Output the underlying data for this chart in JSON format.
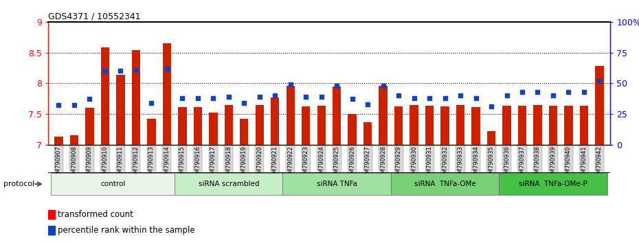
{
  "title": "GDS4371 / 10552341",
  "samples": [
    "GSM790907",
    "GSM790908",
    "GSM790909",
    "GSM790910",
    "GSM790911",
    "GSM790912",
    "GSM790913",
    "GSM790914",
    "GSM790915",
    "GSM790916",
    "GSM790917",
    "GSM790918",
    "GSM790919",
    "GSM790920",
    "GSM790921",
    "GSM790922",
    "GSM790923",
    "GSM790924",
    "GSM790925",
    "GSM790926",
    "GSM790927",
    "GSM790928",
    "GSM790929",
    "GSM790930",
    "GSM790931",
    "GSM790932",
    "GSM790933",
    "GSM790934",
    "GSM790935",
    "GSM790936",
    "GSM790937",
    "GSM790938",
    "GSM790939",
    "GSM790940",
    "GSM790941",
    "GSM790942"
  ],
  "bar_values": [
    7.13,
    7.15,
    7.6,
    8.58,
    8.14,
    8.54,
    7.42,
    8.65,
    7.61,
    7.61,
    7.52,
    7.64,
    7.42,
    7.64,
    7.77,
    7.96,
    7.62,
    7.63,
    7.95,
    7.5,
    7.36,
    7.96,
    7.62,
    7.64,
    7.63,
    7.62,
    7.64,
    7.61,
    7.22,
    7.63,
    7.63,
    7.64,
    7.63,
    7.63,
    7.63,
    8.28
  ],
  "dot_percentiles": [
    32,
    32,
    37,
    60,
    60,
    61,
    34,
    62,
    38,
    38,
    38,
    39,
    34,
    39,
    40,
    49,
    39,
    39,
    48,
    37,
    33,
    48,
    40,
    38,
    38,
    38,
    40,
    38,
    31,
    40,
    43,
    43,
    40,
    43,
    43,
    52
  ],
  "groups": [
    {
      "label": "control",
      "start": 0,
      "end": 7,
      "color": "#e8f5e8"
    },
    {
      "label": "siRNA scrambled",
      "start": 8,
      "end": 14,
      "color": "#c8eec8"
    },
    {
      "label": "siRNA TNFa",
      "start": 15,
      "end": 21,
      "color": "#a0e0a0"
    },
    {
      "label": "siRNA  TNFa-OMe",
      "start": 22,
      "end": 28,
      "color": "#78d078"
    },
    {
      "label": "siRNA  TNFa-OMe-P",
      "start": 29,
      "end": 35,
      "color": "#44c044"
    }
  ],
  "ylim": [
    7.0,
    9.0
  ],
  "yticks": [
    7.0,
    7.5,
    8.0,
    8.5,
    9.0
  ],
  "ytick_labels": [
    "7",
    "7.5",
    "8",
    "8.5",
    "9"
  ],
  "right_yticks": [
    0,
    25,
    50,
    75,
    100
  ],
  "right_ytick_labels": [
    "0",
    "25",
    "50",
    "75",
    "100%"
  ],
  "bar_color": "#cc2200",
  "dot_color": "#1144bb",
  "dotted_lines": [
    7.5,
    8.0,
    8.5
  ]
}
